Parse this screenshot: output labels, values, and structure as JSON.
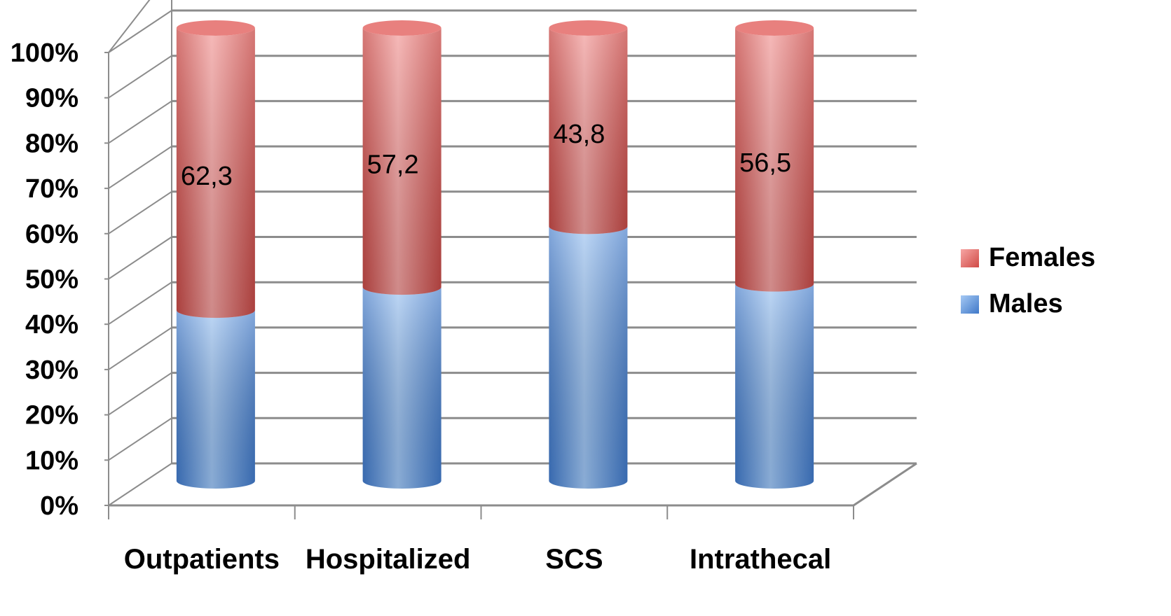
{
  "chart_data": {
    "type": "bar",
    "stacked": true,
    "percent_stacked": true,
    "style": "3d-cylinder",
    "title": "",
    "xlabel": "",
    "ylabel": "",
    "categories": [
      "Outpatients",
      "Hospitalized",
      "SCS",
      "Intrathecal"
    ],
    "series": [
      {
        "name": "Males",
        "values": [
          37.7,
          42.8,
          56.2,
          43.5
        ],
        "color": "#5b8fd6"
      },
      {
        "name": "Females",
        "values": [
          62.3,
          57.2,
          43.8,
          56.5
        ],
        "color": "#d9534f"
      }
    ],
    "data_labels": [
      "62,3",
      "57,2",
      "43,8",
      "56,5"
    ],
    "ylim": [
      0,
      100
    ],
    "yticks": [
      "0%",
      "10%",
      "20%",
      "30%",
      "40%",
      "50%",
      "60%",
      "70%",
      "80%",
      "90%",
      "100%"
    ],
    "grid": true,
    "legend_position": "right",
    "legend_order": [
      "Females",
      "Males"
    ]
  }
}
